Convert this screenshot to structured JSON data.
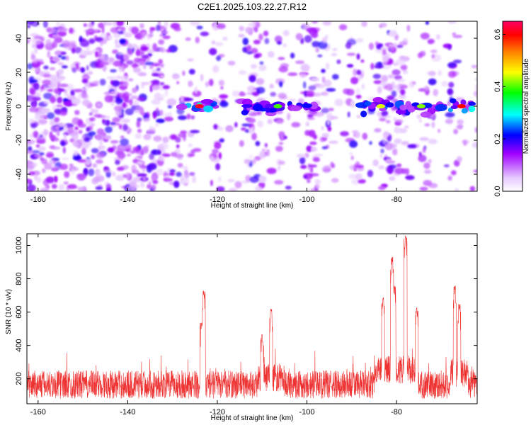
{
  "title": "C2E1.2025.103.22.27.R12",
  "chart_data": [
    {
      "type": "heatmap",
      "xlabel": "Height of straight line (km)",
      "ylabel": "Frequency (Hz)",
      "xlim": [
        -162.5,
        -62
      ],
      "ylim": [
        -50,
        50
      ],
      "xticks": [
        -160,
        -140,
        -120,
        -100,
        -80
      ],
      "yticks": [
        -40,
        -20,
        0,
        20,
        40
      ],
      "colorbar": {
        "label": "Normalized spectral amplitude",
        "range": [
          0.0,
          0.65
        ],
        "ticks": [
          "0.0",
          "0.2",
          "0.4",
          "0.6"
        ],
        "colors": [
          "#ffffff",
          "#e6c8ff",
          "#a000ff",
          "#0000ff",
          "#00ffff",
          "#00ff00",
          "#ffff00",
          "#ff8000",
          "#ff0000",
          "#ff0066"
        ]
      },
      "signal_band": {
        "frequency_hz": 0,
        "segments": [
          {
            "x": [
              -128,
              -120
            ],
            "peak": 0.62
          },
          {
            "x": [
              -115,
              -98
            ],
            "peak": 0.4
          },
          {
            "x": [
              -88,
              -79
            ],
            "peak": 0.45
          },
          {
            "x": [
              -79,
              -70
            ],
            "peak": 0.42
          },
          {
            "x": [
              -68,
              -63
            ],
            "peak": 0.6
          }
        ]
      }
    },
    {
      "type": "line",
      "xlabel": "Height of straight line (km)",
      "ylabel": "SNR (10 * v/v)",
      "xlim": [
        -162.5,
        -62
      ],
      "ylim": [
        50,
        1070
      ],
      "xticks": [
        -160,
        -140,
        -120,
        -100,
        -80
      ],
      "yticks": [
        200,
        400,
        600,
        800,
        1000
      ],
      "color": "#ee3333",
      "baseline_snr": 140,
      "peaks": [
        {
          "x": -123.0,
          "y": 730
        },
        {
          "x": -123.5,
          "y": 540
        },
        {
          "x": -108.0,
          "y": 620
        },
        {
          "x": -110.0,
          "y": 470
        },
        {
          "x": -83.0,
          "y": 690
        },
        {
          "x": -81.0,
          "y": 935
        },
        {
          "x": -78.0,
          "y": 1060
        },
        {
          "x": -80.5,
          "y": 760
        },
        {
          "x": -75.5,
          "y": 630
        },
        {
          "x": -67.0,
          "y": 760
        },
        {
          "x": -66.0,
          "y": 650
        }
      ]
    }
  ]
}
